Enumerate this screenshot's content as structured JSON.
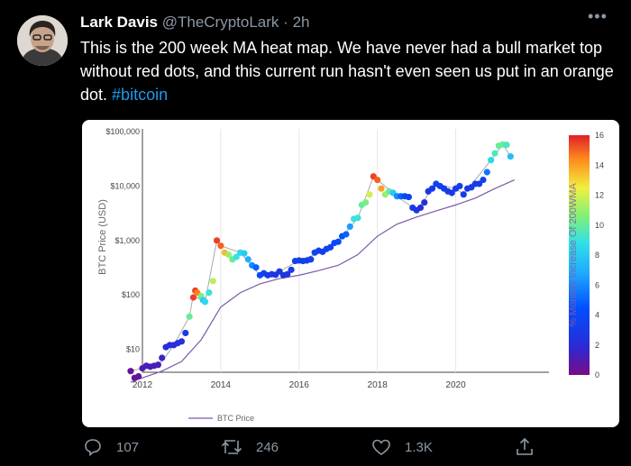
{
  "tweet": {
    "author_name": "Lark Davis",
    "handle": "@TheCryptoLark",
    "separator": "·",
    "time": "2h",
    "text_main": "This is the 200 week MA heat map. We have never had a bull market top without red dots, and this current run hasn't even seen us put in an orange dot.",
    "hashtag": "#bitcoin"
  },
  "actions": {
    "reply_count": "107",
    "retweet_count": "246",
    "like_count": "1.3K"
  },
  "icons": [
    "avatar-photo",
    "more-icon",
    "reply-icon",
    "retweet-icon",
    "like-icon",
    "share-icon"
  ],
  "chart_data": {
    "type": "scatter",
    "ylabel": "BTC Price (USD)",
    "colorbar_label": "% Monthly Increase Of 200WMA",
    "legend": "BTC Price",
    "x_ticks": [
      "2012",
      "2014",
      "2016",
      "2018",
      "2020"
    ],
    "y_ticks": [
      "$10",
      "$100",
      "$1,000",
      "$10,000",
      "$100,000"
    ],
    "colorbar_ticks": [
      "0",
      "2",
      "4",
      "6",
      "8",
      "10",
      "12",
      "14",
      "16"
    ],
    "scale": "log",
    "xlim": [
      2011.7,
      2021.8
    ],
    "ylim_log10": [
      0.58,
      5.05
    ],
    "color_range": [
      0,
      16
    ],
    "dots": [
      [
        2011.7,
        4,
        0.5
      ],
      [
        2011.8,
        3,
        0.5
      ],
      [
        2011.9,
        3.2,
        0.5
      ],
      [
        2012.0,
        4.5,
        1.0
      ],
      [
        2012.1,
        5,
        1.2
      ],
      [
        2012.2,
        4.8,
        1.2
      ],
      [
        2012.3,
        5,
        1.2
      ],
      [
        2012.4,
        5.2,
        1.2
      ],
      [
        2012.5,
        7,
        1.5
      ],
      [
        2012.6,
        11,
        2.0
      ],
      [
        2012.7,
        12,
        2.0
      ],
      [
        2012.8,
        12,
        2.0
      ],
      [
        2012.9,
        13,
        2.2
      ],
      [
        2013.0,
        14,
        2.2
      ],
      [
        2013.1,
        20,
        3.0
      ],
      [
        2013.2,
        40,
        10.0
      ],
      [
        2013.3,
        90,
        15.5
      ],
      [
        2013.35,
        120,
        15.5
      ],
      [
        2013.4,
        110,
        14.5
      ],
      [
        2013.5,
        95,
        10.5
      ],
      [
        2013.55,
        80,
        8.0
      ],
      [
        2013.6,
        75,
        8.5
      ],
      [
        2013.7,
        110,
        9.0
      ],
      [
        2013.8,
        180,
        11.5
      ],
      [
        2013.9,
        1000,
        15.5
      ],
      [
        2014.0,
        800,
        15.0
      ],
      [
        2014.1,
        600,
        13.5
      ],
      [
        2014.2,
        550,
        11.0
      ],
      [
        2014.3,
        450,
        10.0
      ],
      [
        2014.4,
        500,
        9.0
      ],
      [
        2014.5,
        600,
        8.5
      ],
      [
        2014.6,
        580,
        8.0
      ],
      [
        2014.7,
        450,
        7.0
      ],
      [
        2014.8,
        350,
        6.0
      ],
      [
        2014.9,
        320,
        5.0
      ],
      [
        2015.0,
        230,
        4.0
      ],
      [
        2015.1,
        250,
        3.5
      ],
      [
        2015.2,
        230,
        3.0
      ],
      [
        2015.3,
        240,
        3.0
      ],
      [
        2015.4,
        235,
        2.5
      ],
      [
        2015.5,
        270,
        2.8
      ],
      [
        2015.6,
        230,
        2.5
      ],
      [
        2015.7,
        240,
        2.5
      ],
      [
        2015.8,
        290,
        3.0
      ],
      [
        2015.9,
        420,
        3.5
      ],
      [
        2016.0,
        430,
        3.5
      ],
      [
        2016.1,
        420,
        3.2
      ],
      [
        2016.2,
        430,
        3.2
      ],
      [
        2016.3,
        450,
        3.2
      ],
      [
        2016.4,
        600,
        3.5
      ],
      [
        2016.5,
        650,
        3.5
      ],
      [
        2016.6,
        620,
        3.2
      ],
      [
        2016.7,
        700,
        3.5
      ],
      [
        2016.8,
        750,
        3.5
      ],
      [
        2016.9,
        900,
        4.0
      ],
      [
        2017.0,
        950,
        4.0
      ],
      [
        2017.1,
        1200,
        4.5
      ],
      [
        2017.2,
        1300,
        5.0
      ],
      [
        2017.3,
        1800,
        6.5
      ],
      [
        2017.4,
        2500,
        9.0
      ],
      [
        2017.5,
        2600,
        9.0
      ],
      [
        2017.6,
        4500,
        10.0
      ],
      [
        2017.7,
        5000,
        10.5
      ],
      [
        2017.8,
        7000,
        12.0
      ],
      [
        2017.9,
        15000,
        15.5
      ],
      [
        2018.0,
        13000,
        15.0
      ],
      [
        2018.1,
        9000,
        14.0
      ],
      [
        2018.2,
        7000,
        11.0
      ],
      [
        2018.3,
        8000,
        10.0
      ],
      [
        2018.4,
        7500,
        8.0
      ],
      [
        2018.5,
        6500,
        6.0
      ],
      [
        2018.6,
        6500,
        5.0
      ],
      [
        2018.7,
        6500,
        4.0
      ],
      [
        2018.8,
        6300,
        3.5
      ],
      [
        2018.9,
        4000,
        3.0
      ],
      [
        2019.0,
        3600,
        2.5
      ],
      [
        2019.1,
        4000,
        2.2
      ],
      [
        2019.2,
        5000,
        2.2
      ],
      [
        2019.3,
        8000,
        2.5
      ],
      [
        2019.4,
        9000,
        3.0
      ],
      [
        2019.5,
        11000,
        3.5
      ],
      [
        2019.6,
        10000,
        3.5
      ],
      [
        2019.7,
        9000,
        3.2
      ],
      [
        2019.8,
        8000,
        3.0
      ],
      [
        2019.9,
        7500,
        3.0
      ],
      [
        2020.0,
        9000,
        3.0
      ],
      [
        2020.1,
        10000,
        3.2
      ],
      [
        2020.2,
        7000,
        3.0
      ],
      [
        2020.3,
        9000,
        3.0
      ],
      [
        2020.4,
        9500,
        3.0
      ],
      [
        2020.5,
        11000,
        3.0
      ],
      [
        2020.6,
        11000,
        3.0
      ],
      [
        2020.7,
        13000,
        3.5
      ],
      [
        2020.8,
        18000,
        5.5
      ],
      [
        2020.9,
        30000,
        8.5
      ],
      [
        2021.0,
        40000,
        9.5
      ],
      [
        2021.1,
        55000,
        10.0
      ],
      [
        2021.2,
        58000,
        10.0
      ],
      [
        2021.3,
        57000,
        9.5
      ],
      [
        2021.4,
        35000,
        7.5
      ]
    ],
    "ma_line": [
      [
        2011.7,
        2.5
      ],
      [
        2012.0,
        3
      ],
      [
        2012.5,
        4
      ],
      [
        2013.0,
        6
      ],
      [
        2013.5,
        15
      ],
      [
        2014.0,
        60
      ],
      [
        2014.5,
        110
      ],
      [
        2015.0,
        160
      ],
      [
        2015.5,
        200
      ],
      [
        2016.0,
        230
      ],
      [
        2016.5,
        280
      ],
      [
        2017.0,
        350
      ],
      [
        2017.5,
        550
      ],
      [
        2018.0,
        1200
      ],
      [
        2018.5,
        2000
      ],
      [
        2019.0,
        2700
      ],
      [
        2019.5,
        3500
      ],
      [
        2020.0,
        4500
      ],
      [
        2020.5,
        6000
      ],
      [
        2021.0,
        9000
      ],
      [
        2021.5,
        13000
      ]
    ],
    "price_line": [
      [
        2011.7,
        4
      ],
      [
        2012.0,
        4.5
      ],
      [
        2012.5,
        6
      ],
      [
        2012.8,
        12
      ],
      [
        2013.2,
        40
      ],
      [
        2013.3,
        100
      ],
      [
        2013.5,
        80
      ],
      [
        2013.6,
        75
      ],
      [
        2013.9,
        1000
      ],
      [
        2014.0,
        800
      ],
      [
        2014.5,
        600
      ],
      [
        2015.0,
        230
      ],
      [
        2015.5,
        270
      ],
      [
        2016.0,
        430
      ],
      [
        2016.6,
        620
      ],
      [
        2017.0,
        950
      ],
      [
        2017.5,
        2600
      ],
      [
        2017.9,
        15000
      ],
      [
        2018.0,
        13000
      ],
      [
        2018.5,
        6500
      ],
      [
        2019.0,
        3600
      ],
      [
        2019.5,
        11000
      ],
      [
        2020.0,
        9000
      ],
      [
        2020.2,
        7000
      ],
      [
        2020.9,
        30000
      ],
      [
        2021.2,
        58000
      ],
      [
        2021.4,
        35000
      ]
    ]
  }
}
